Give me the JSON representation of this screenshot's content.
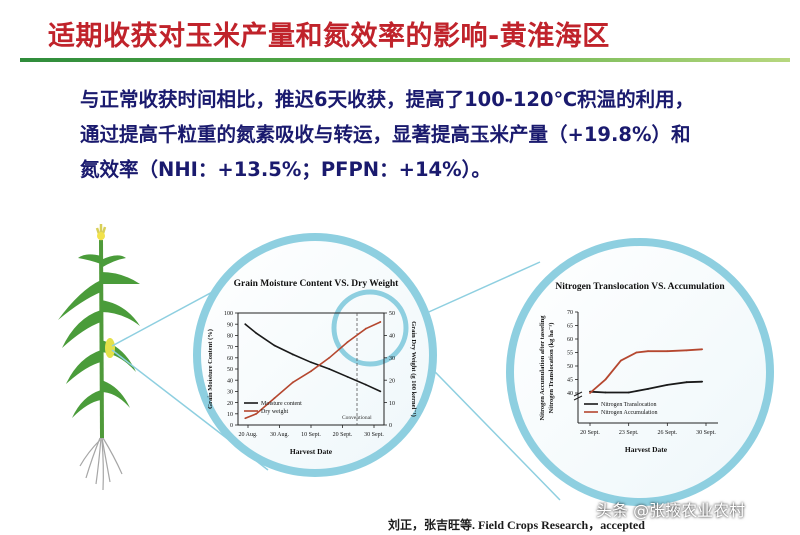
{
  "slide": {
    "title": "适期收获对玉米产量和氮效率的影响-黄淮海区",
    "summary_lines": [
      "与正常收获时间相比，推迟6天收获，提高了100-120℃积温的利用，",
      "通过提高千粒重的氮素吸收与转运，显著提高玉米产量（+19.8%）和",
      "氮效率（NHI：+13.5%；PFPN：+14%）。"
    ],
    "citation": "刘正，张吉旺等. Field Crops Research，accepted",
    "watermark": "头条 @张掖农业农村",
    "colors": {
      "title": "#c0232b",
      "summary_text": "#1a1a6e",
      "rule": "#2f8c3b",
      "lens_ring": "#8ecfe0",
      "series_dark": "#1a1a1a",
      "series_red": "#b5472f"
    },
    "icons": [
      "corn-plant-icon",
      "magnifier-lens-icon"
    ]
  },
  "chart_data": [
    {
      "type": "line",
      "title": "Grain Moisture Content VS. Dry Weight",
      "xlabel": "Harvest Date",
      "ylabel_left": "Grain Moisture Content (%)",
      "ylabel_right": "Grain Dry Weight (g 100 kernel⁻¹)",
      "x_ticks": [
        "20 Aug.",
        "30 Aug.",
        "10 Sept.",
        "20 Sept.",
        "30 Sept."
      ],
      "ylim_left": [
        0,
        100
      ],
      "left_ticks": [
        "0",
        "10",
        "20",
        "30",
        "40",
        "50",
        "60",
        "70",
        "80",
        "90",
        "100"
      ],
      "ylim_right": [
        0,
        50
      ],
      "right_ticks": [
        "0",
        "10",
        "20",
        "30",
        "40",
        "50"
      ],
      "annotation": "Conventional",
      "legend_position": "bottom-left",
      "grid": false,
      "x_range": [
        0,
        4
      ],
      "series": [
        {
          "name": "Moisture content",
          "axis": "left",
          "color": "#1a1a1a",
          "x": [
            0.2,
            0.5,
            1.0,
            1.5,
            2.0,
            2.5,
            3.0,
            3.5,
            3.9
          ],
          "y": [
            90,
            82,
            71,
            63,
            56,
            50,
            43,
            36,
            30
          ]
        },
        {
          "name": "Dry weight",
          "axis": "right",
          "color": "#b5472f",
          "x": [
            0.2,
            0.5,
            1.0,
            1.5,
            2.0,
            2.5,
            3.0,
            3.5,
            3.9
          ],
          "y": [
            3,
            5,
            12,
            19,
            24,
            30,
            37,
            43,
            46
          ]
        }
      ]
    },
    {
      "type": "line",
      "title": "Nitrogen Translocation VS. Accumulation",
      "xlabel": "Harvest Date",
      "ylabel_left": "Nitrogen Accumulation after tasseling",
      "ylabel_left2": "Nitrogen Translocation (kg ha⁻¹)",
      "x_ticks": [
        "20 Sept.",
        "23 Sept.",
        "26 Sept.",
        "30 Sept."
      ],
      "ylim": [
        40,
        70
      ],
      "y_ticks": [
        "40",
        "45",
        "50",
        "55",
        "60",
        "65",
        "70"
      ],
      "axis_break": true,
      "legend_position": "bottom-left",
      "grid": false,
      "x_range": [
        0,
        3
      ],
      "series": [
        {
          "name": "Nitrogen Translocation",
          "color": "#1a1a1a",
          "x": [
            0.0,
            0.4,
            1.0,
            1.5,
            2.0,
            2.5,
            2.9
          ],
          "y": [
            40.5,
            40.2,
            40.2,
            41.5,
            43.0,
            44.0,
            44.2
          ]
        },
        {
          "name": "Nitrogen Accumulation",
          "color": "#b5472f",
          "x": [
            0.0,
            0.4,
            0.8,
            1.2,
            1.5,
            2.0,
            2.5,
            2.9
          ],
          "y": [
            40.0,
            45.0,
            52.0,
            55.0,
            55.5,
            55.5,
            55.8,
            56.2
          ]
        }
      ]
    }
  ]
}
